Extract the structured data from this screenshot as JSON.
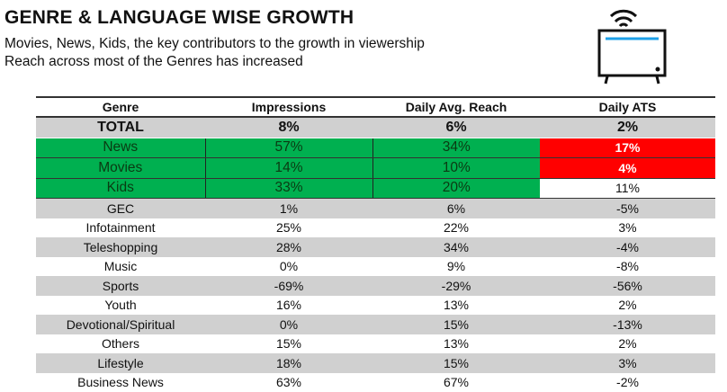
{
  "title": "GENRE & LANGUAGE WISE GROWTH",
  "subtitle1": "Movies, News, Kids, the key contributors to the growth in viewership",
  "subtitle2": "Reach across most of the Genres has increased",
  "icon": "tv-wifi-icon",
  "colors": {
    "green": "#00b050",
    "red": "#ff0000",
    "gray": "#d0d0d0"
  },
  "headers": [
    "Genre",
    "Impressions",
    "Daily Avg. Reach",
    "Daily ATS"
  ],
  "total": [
    "TOTAL",
    "8%",
    "6%",
    "2%"
  ],
  "highlight": [
    [
      "News",
      "57%",
      "34%",
      "17%"
    ],
    [
      "Movies",
      "14%",
      "10%",
      "4%"
    ],
    [
      "Kids",
      "33%",
      "20%",
      "11%"
    ]
  ],
  "rows": [
    [
      "GEC",
      "1%",
      "6%",
      "-5%"
    ],
    [
      "Infotainment",
      "25%",
      "22%",
      "3%"
    ],
    [
      "Teleshopping",
      "28%",
      "34%",
      "-4%"
    ],
    [
      "Music",
      "0%",
      "9%",
      "-8%"
    ],
    [
      "Sports",
      "-69%",
      "-29%",
      "-56%"
    ],
    [
      "Youth",
      "16%",
      "13%",
      "2%"
    ],
    [
      "Devotional/Spiritual",
      "0%",
      "15%",
      "-13%"
    ],
    [
      "Others",
      "15%",
      "13%",
      "2%"
    ],
    [
      "Lifestyle",
      "18%",
      "15%",
      "3%"
    ],
    [
      "Business News",
      "63%",
      "67%",
      "-2%"
    ]
  ]
}
